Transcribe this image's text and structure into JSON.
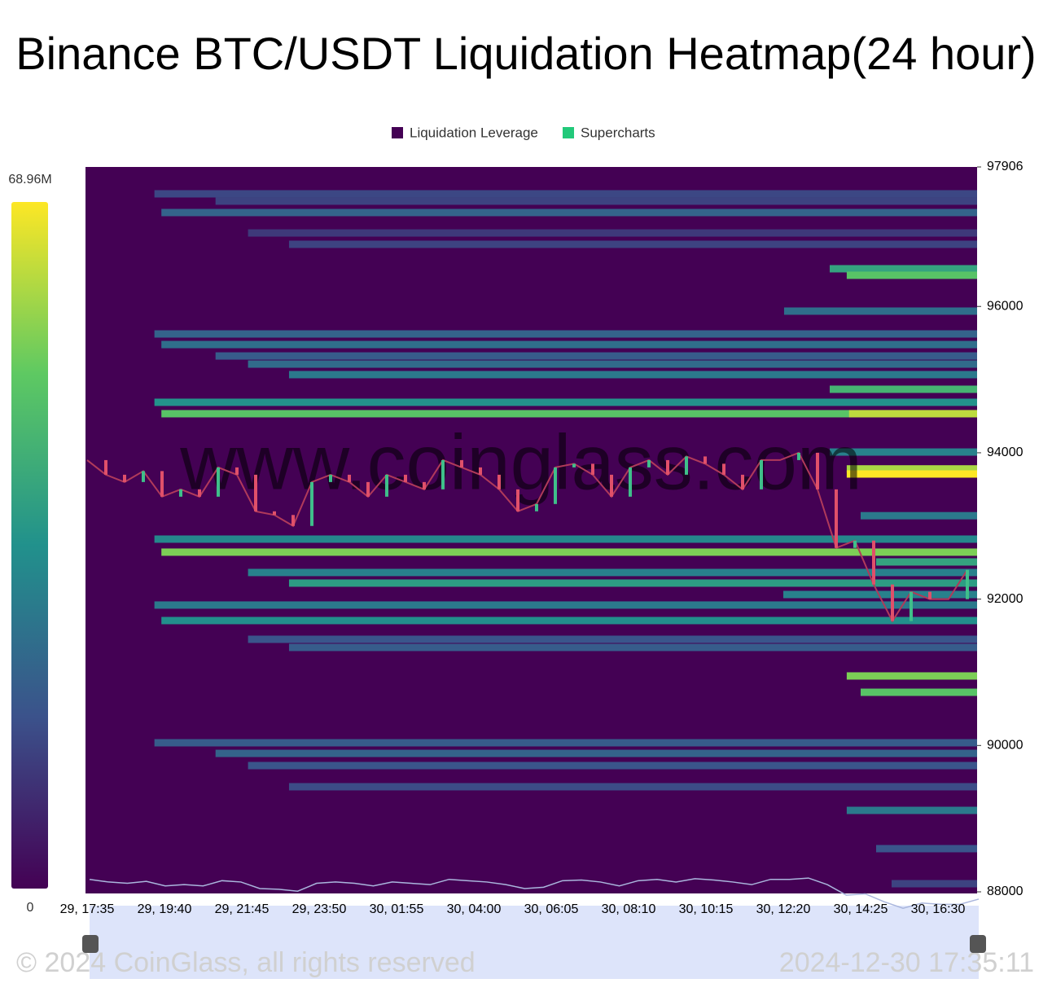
{
  "chart_data": {
    "type": "heatmap",
    "title": "Binance BTC/USDT Liquidation Heatmap(24 hour)",
    "legend": [
      {
        "name": "Liquidation Leverage",
        "color": "#440154"
      },
      {
        "name": "Supercharts",
        "color": "#22c97a"
      }
    ],
    "watermark": "www.coinglass.com",
    "footer_left": "© 2024 CoinGlass, all rights reserved",
    "footer_right": "2024-12-30 17:35:11",
    "categories": [
      "29, 17:35",
      "29, 19:40",
      "29, 21:45",
      "29, 23:50",
      "30, 01:55",
      "30, 04:00",
      "30, 06:05",
      "30, 08:10",
      "30, 10:15",
      "30, 12:20",
      "30, 14:25",
      "30, 16:30"
    ],
    "ylim": [
      88000,
      97906
    ],
    "yticks": [
      88000,
      90000,
      92000,
      94000,
      96000,
      97906
    ],
    "zlim": [
      0,
      68.96
    ],
    "zticks": [
      0,
      {
        "value": 68.96,
        "label": "68.96M"
      }
    ],
    "bands": [
      {
        "y": 97539,
        "from": 0.87,
        "value": 15
      },
      {
        "y": 97439,
        "from": 1.66,
        "value": 14
      },
      {
        "y": 97283,
        "from": 0.96,
        "value": 22
      },
      {
        "y": 97004,
        "from": 2.08,
        "value": 12
      },
      {
        "y": 96849,
        "from": 2.61,
        "value": 14
      },
      {
        "y": 96515,
        "from": 9.6,
        "value": 40
      },
      {
        "y": 96426,
        "from": 9.82,
        "value": 50
      },
      {
        "y": 95936,
        "from": 9.01,
        "value": 25
      },
      {
        "y": 95624,
        "from": 0.87,
        "value": 22
      },
      {
        "y": 95479,
        "from": 0.96,
        "value": 25
      },
      {
        "y": 95323,
        "from": 1.66,
        "value": 20
      },
      {
        "y": 95212,
        "from": 2.08,
        "value": 24
      },
      {
        "y": 95068,
        "from": 2.61,
        "value": 28
      },
      {
        "y": 94868,
        "from": 9.6,
        "value": 45
      },
      {
        "y": 94690,
        "from": 0.87,
        "value": 35
      },
      {
        "y": 94534,
        "from": 0.96,
        "value": 50
      },
      {
        "y": 94534,
        "from": 9.85,
        "value": 62
      },
      {
        "y": 94010,
        "from": 9.6,
        "value": 30
      },
      {
        "y": 93780,
        "from": 9.82,
        "value": 60
      },
      {
        "y": 93710,
        "from": 9.82,
        "value": 68.96
      },
      {
        "y": 93140,
        "from": 10.0,
        "value": 28
      },
      {
        "y": 92820,
        "from": 0.87,
        "value": 32
      },
      {
        "y": 92642,
        "from": 0.96,
        "value": 55
      },
      {
        "y": 92508,
        "from": 10.2,
        "value": 40
      },
      {
        "y": 92364,
        "from": 2.08,
        "value": 30
      },
      {
        "y": 92219,
        "from": 2.61,
        "value": 38
      },
      {
        "y": 92063,
        "from": 9.0,
        "value": 30
      },
      {
        "y": 91919,
        "from": 0.87,
        "value": 28
      },
      {
        "y": 91707,
        "from": 0.96,
        "value": 34
      },
      {
        "y": 91451,
        "from": 2.08,
        "value": 18
      },
      {
        "y": 91340,
        "from": 2.61,
        "value": 20
      },
      {
        "y": 90950,
        "from": 9.82,
        "value": 55
      },
      {
        "y": 90727,
        "from": 10.0,
        "value": 50
      },
      {
        "y": 90037,
        "from": 0.87,
        "value": 20
      },
      {
        "y": 89892,
        "from": 1.66,
        "value": 22
      },
      {
        "y": 89725,
        "from": 2.08,
        "value": 18
      },
      {
        "y": 89436,
        "from": 2.61,
        "value": 16
      },
      {
        "y": 89113,
        "from": 9.82,
        "value": 28
      },
      {
        "y": 88590,
        "from": 10.2,
        "value": 18
      },
      {
        "y": 88111,
        "from": 10.4,
        "value": 14
      }
    ],
    "price": [
      93900,
      93700,
      93600,
      93750,
      93400,
      93500,
      93400,
      93800,
      93700,
      93200,
      93150,
      93000,
      93600,
      93700,
      93600,
      93400,
      93700,
      93600,
      93500,
      93900,
      93800,
      93700,
      93500,
      93200,
      93300,
      93800,
      93850,
      93700,
      93400,
      93800,
      93900,
      93700,
      93950,
      93850,
      93700,
      93500,
      93900,
      93900,
      94000,
      93500,
      92700,
      92800,
      92200,
      91700,
      92100,
      92000,
      92000,
      92400
    ]
  }
}
